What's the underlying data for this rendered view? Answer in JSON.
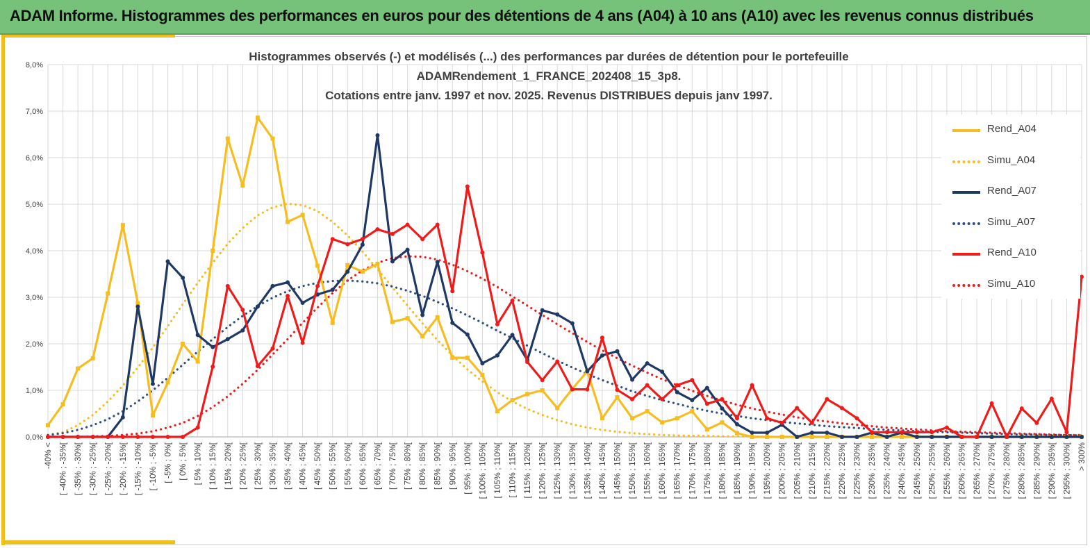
{
  "header": {
    "title": "ADAM Informe. Histogrammes des performances en euros pour des détentions de 4 ans (A04) à 10 ans (A10) avec les revenus connus distribués"
  },
  "colors": {
    "banner": "#76c27b",
    "accent": "#f2bd1b",
    "a04": "#f5bd1f",
    "a07": "#1f3864",
    "a10": "#ef1b1b",
    "sim07": "#2e4f7f",
    "grid": "#d9d9d9",
    "axis_text": "#404040"
  },
  "chart_data": {
    "type": "line",
    "title_lines": [
      "Histogrammes observés (-) et modélisés (...) des performances par durées de détention pour le portefeuille",
      "ADAMRendement_1_FRANCE_202408_15_3p8.",
      "Cotations entre janv. 1997 et nov. 2025. Revenus DISTRIBUES depuis janv 1997."
    ],
    "ylim": [
      0,
      8
    ],
    "yticks": [
      "0,0%",
      "1,0%",
      "2,0%",
      "3,0%",
      "4,0%",
      "5,0%",
      "6,0%",
      "7,0%",
      "8,0%"
    ],
    "grid": true,
    "legend_position": "right",
    "categories": [
      "-40% <",
      "[ -40% ; -35%[",
      "[ -35% ; -30%[",
      "[ -30% ; -25%[",
      "[ -25% ; -20%[",
      "[ -20% ; -15%[",
      "[ -15% ; -10%[",
      "[ -10% ; -5%[",
      "[ -5% ; 0%[",
      "[ 0% ; 5%[",
      "[ 5% ; 10%[",
      "[ 10% ; 15%[",
      "[ 15% ; 20%[",
      "[ 20% ; 25%[",
      "[ 25% ; 30%[",
      "[ 30% ; 35%[",
      "[ 35% ; 40%[",
      "[ 40% ; 45%[",
      "[ 45% ; 50%[",
      "[ 50% ; 55%[",
      "[ 55% ; 60%[",
      "[ 60% ; 65%[",
      "[ 65% ; 70%[",
      "[ 70% ; 75%[",
      "[ 75% ; 80%[",
      "[ 80% ; 85%[",
      "[ 85% ; 90%[",
      "[ 90% ; 95%[",
      "[ 95% ; 100%[",
      "[ 100% ; 105%[",
      "[ 105% ; 110%[",
      "[ 110% ; 115%[",
      "[ 115% ; 120%[",
      "[ 120% ; 125%[",
      "[ 125% ; 130%[",
      "[ 130% ; 135%[",
      "[ 135% ; 140%[",
      "[ 140% ; 145%[",
      "[ 145% ; 150%[",
      "[ 150% ; 155%[",
      "[ 155% ; 160%[",
      "[ 160% ; 165%[",
      "[ 165% ; 170%[",
      "[ 170% ; 175%[",
      "[ 175% ; 180%[",
      "[ 180% ; 185%[",
      "[ 185% ; 190%[",
      "[ 190% ; 195%[",
      "[ 195% ; 200%[",
      "[ 200% ; 205%[",
      "[ 205% ; 210%[",
      "[ 210% ; 215%[",
      "[ 215% ; 220%[",
      "[ 220% ; 225%[",
      "[ 225% ; 230%[",
      "[ 230% ; 235%[",
      "[ 235% ; 240%[",
      "[ 240% ; 245%[",
      "[ 245% ; 250%[",
      "[ 250% ; 255%[",
      "[ 255% ; 260%[",
      "[ 260% ; 265%[",
      "[ 265% ; 270%[",
      "[ 270% ; 275%[",
      "[ 275% ; 280%[",
      "[ 280% ; 285%[",
      "[ 285% ; 290%[",
      "[ 290% ; 295%[",
      "[ 295% ; 300%[",
      "> 300%"
    ],
    "series": [
      {
        "name": "Rend_A04",
        "style": "solid",
        "marker": "square",
        "color": "#f5bd1f",
        "values": [
          0.25,
          0.7,
          1.47,
          1.69,
          3.08,
          4.55,
          2.87,
          0.46,
          1.17,
          2.0,
          1.62,
          4.0,
          6.41,
          5.4,
          6.86,
          6.41,
          4.62,
          4.77,
          3.68,
          2.45,
          3.69,
          3.55,
          3.72,
          2.47,
          2.55,
          2.16,
          2.57,
          1.7,
          1.7,
          1.33,
          0.55,
          0.79,
          0.92,
          1.0,
          0.62,
          1.03,
          1.41,
          0.4,
          0.85,
          0.4,
          0.55,
          0.31,
          0.4,
          0.55,
          0.16,
          0.31,
          0.08,
          0.0,
          0.0,
          0.0,
          0.0,
          0.0,
          0.0,
          0.0,
          0.0,
          0.0,
          0.0,
          0.0,
          0.0,
          0.0,
          0.0,
          0.0,
          0.0,
          0.0,
          0.0,
          0.0,
          0.0,
          0.0,
          0.0,
          0.0
        ]
      },
      {
        "name": "Simu_A04",
        "style": "dotted",
        "marker": "none",
        "color": "#f5bd1f",
        "values": [
          0.04,
          0.1,
          0.25,
          0.47,
          0.76,
          1.1,
          1.49,
          1.92,
          2.38,
          2.85,
          3.31,
          3.74,
          4.15,
          4.49,
          4.76,
          4.93,
          5.01,
          4.98,
          4.85,
          4.62,
          4.33,
          3.98,
          3.6,
          3.21,
          2.82,
          2.44,
          2.08,
          1.75,
          1.45,
          1.19,
          0.96,
          0.76,
          0.6,
          0.47,
          0.36,
          0.27,
          0.2,
          0.15,
          0.11,
          0.08,
          0.06,
          0.04,
          0.03,
          0.02,
          0.02,
          0.01,
          0.01,
          0.01,
          0.0,
          0.0,
          0.0,
          0.0,
          0.0,
          0.0,
          0.0,
          0.0,
          0.0,
          0.0,
          0.0,
          0.0,
          0.0,
          0.0,
          0.0,
          0.0,
          0.0,
          0.0,
          0.0,
          0.0,
          0.0,
          0.0
        ]
      },
      {
        "name": "Rend_A07",
        "style": "solid",
        "marker": "circle",
        "color": "#1f3864",
        "values": [
          0.0,
          0.0,
          0.0,
          0.0,
          0.0,
          0.42,
          2.8,
          1.14,
          3.77,
          3.42,
          2.19,
          1.93,
          2.1,
          2.29,
          2.8,
          3.24,
          3.32,
          2.88,
          3.06,
          3.16,
          3.55,
          4.13,
          6.48,
          3.77,
          4.02,
          2.62,
          3.76,
          2.45,
          2.2,
          1.58,
          1.75,
          2.19,
          1.65,
          2.72,
          2.63,
          2.44,
          1.41,
          1.75,
          1.84,
          1.23,
          1.58,
          1.4,
          0.96,
          0.79,
          1.05,
          0.61,
          0.27,
          0.09,
          0.09,
          0.26,
          0.0,
          0.09,
          0.09,
          0.0,
          0.0,
          0.09,
          0.0,
          0.09,
          0.0,
          0.0,
          0.0,
          0.0,
          0.0,
          0.0,
          0.0,
          0.0,
          0.0,
          0.0,
          0.0,
          0.0
        ]
      },
      {
        "name": "Simu_A07",
        "style": "dotted",
        "marker": "none",
        "color": "#2e4f7f",
        "values": [
          0.04,
          0.08,
          0.15,
          0.25,
          0.38,
          0.55,
          0.76,
          1.0,
          1.27,
          1.55,
          1.83,
          2.1,
          2.36,
          2.6,
          2.81,
          2.99,
          3.13,
          3.24,
          3.31,
          3.35,
          3.36,
          3.34,
          3.3,
          3.23,
          3.14,
          3.03,
          2.9,
          2.76,
          2.61,
          2.45,
          2.28,
          2.12,
          1.96,
          1.8,
          1.64,
          1.49,
          1.35,
          1.22,
          1.1,
          0.98,
          0.88,
          0.79,
          0.71,
          0.63,
          0.56,
          0.5,
          0.45,
          0.4,
          0.36,
          0.32,
          0.29,
          0.26,
          0.23,
          0.21,
          0.19,
          0.17,
          0.15,
          0.14,
          0.12,
          0.11,
          0.1,
          0.09,
          0.08,
          0.07,
          0.06,
          0.05,
          0.05,
          0.04,
          0.04,
          0.03
        ]
      },
      {
        "name": "Rend_A10",
        "style": "solid",
        "marker": "circle",
        "color": "#ef1b1b",
        "values": [
          0.0,
          0.0,
          0.0,
          0.0,
          0.0,
          0.0,
          0.0,
          0.0,
          0.0,
          0.0,
          0.2,
          1.51,
          3.24,
          2.73,
          1.52,
          1.9,
          3.03,
          2.02,
          3.24,
          4.25,
          4.14,
          4.25,
          4.46,
          4.36,
          4.56,
          4.25,
          4.56,
          3.13,
          5.38,
          3.96,
          2.42,
          2.93,
          1.61,
          1.22,
          1.62,
          1.02,
          1.02,
          2.13,
          1.01,
          0.81,
          1.11,
          0.81,
          1.11,
          1.22,
          0.71,
          0.81,
          0.4,
          1.11,
          0.4,
          0.3,
          0.62,
          0.3,
          0.81,
          0.62,
          0.4,
          0.1,
          0.1,
          0.1,
          0.1,
          0.1,
          0.2,
          0.0,
          0.0,
          0.72,
          0.0,
          0.61,
          0.3,
          0.82,
          0.1,
          3.44
        ]
      },
      {
        "name": "Simu_A10",
        "style": "dotted",
        "marker": "none",
        "color": "#ef1b1b",
        "values": [
          0.0,
          0.0,
          0.0,
          0.01,
          0.02,
          0.04,
          0.07,
          0.12,
          0.2,
          0.3,
          0.45,
          0.64,
          0.87,
          1.14,
          1.44,
          1.77,
          2.1,
          2.45,
          2.78,
          3.09,
          3.36,
          3.58,
          3.74,
          3.84,
          3.88,
          3.87,
          3.81,
          3.7,
          3.56,
          3.4,
          3.22,
          3.02,
          2.82,
          2.62,
          2.42,
          2.23,
          2.04,
          1.86,
          1.69,
          1.53,
          1.38,
          1.24,
          1.11,
          0.99,
          0.88,
          0.78,
          0.69,
          0.61,
          0.54,
          0.48,
          0.42,
          0.37,
          0.33,
          0.29,
          0.26,
          0.23,
          0.2,
          0.18,
          0.16,
          0.14,
          0.12,
          0.11,
          0.1,
          0.09,
          0.08,
          0.07,
          0.06,
          0.05,
          0.04,
          0.04
        ]
      }
    ]
  }
}
